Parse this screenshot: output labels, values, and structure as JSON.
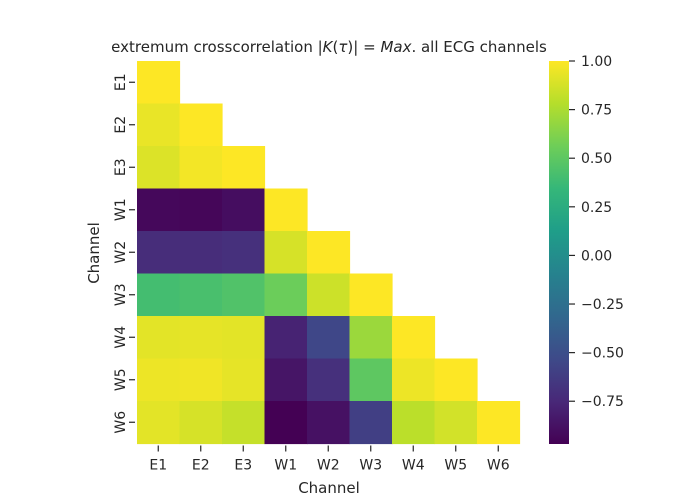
{
  "chart_data": {
    "type": "heatmap",
    "title": "extremum crosscorrelation |K(τ)| = Max.  all ECG channels",
    "title_parts": {
      "before": "extremum crosscorrelation |",
      "math_K": "K",
      "math_open": "(",
      "math_tau": "τ",
      "math_close": ")",
      "after_bar": "| = ",
      "math_max": "Max",
      "after": ".  all ECG channels"
    },
    "xlabel": "Channel",
    "ylabel": "Channel",
    "mask": "upper triangle (lower triangle incl. diagonal shown)",
    "channels": [
      "E1",
      "E2",
      "E3",
      "W1",
      "W2",
      "W3",
      "W4",
      "W5",
      "W6"
    ],
    "matrix": [
      [
        1.0
      ],
      [
        0.94,
        1.0
      ],
      [
        0.9,
        0.97,
        1.0
      ],
      [
        -0.93,
        -0.94,
        -0.9,
        1.0
      ],
      [
        -0.72,
        -0.72,
        -0.7,
        0.88,
        1.0
      ],
      [
        0.4,
        0.42,
        0.45,
        0.55,
        0.85,
        1.0
      ],
      [
        0.92,
        0.93,
        0.92,
        -0.78,
        -0.55,
        0.7,
        1.0
      ],
      [
        0.95,
        0.96,
        0.93,
        -0.86,
        -0.7,
        0.5,
        0.95,
        1.0
      ],
      [
        0.92,
        0.88,
        0.83,
        -0.97,
        -0.88,
        -0.6,
        0.8,
        0.87,
        1.0
      ]
    ],
    "colormap": "viridis",
    "vmin": -0.97,
    "vmax": 1.0,
    "colorbar_ticks": [
      "1.00",
      "0.75",
      "0.50",
      "0.25",
      "0.00",
      "−0.25",
      "−0.50",
      "−0.75"
    ],
    "colorbar_tick_values": [
      1.0,
      0.75,
      0.5,
      0.25,
      0.0,
      -0.25,
      -0.5,
      -0.75
    ]
  }
}
